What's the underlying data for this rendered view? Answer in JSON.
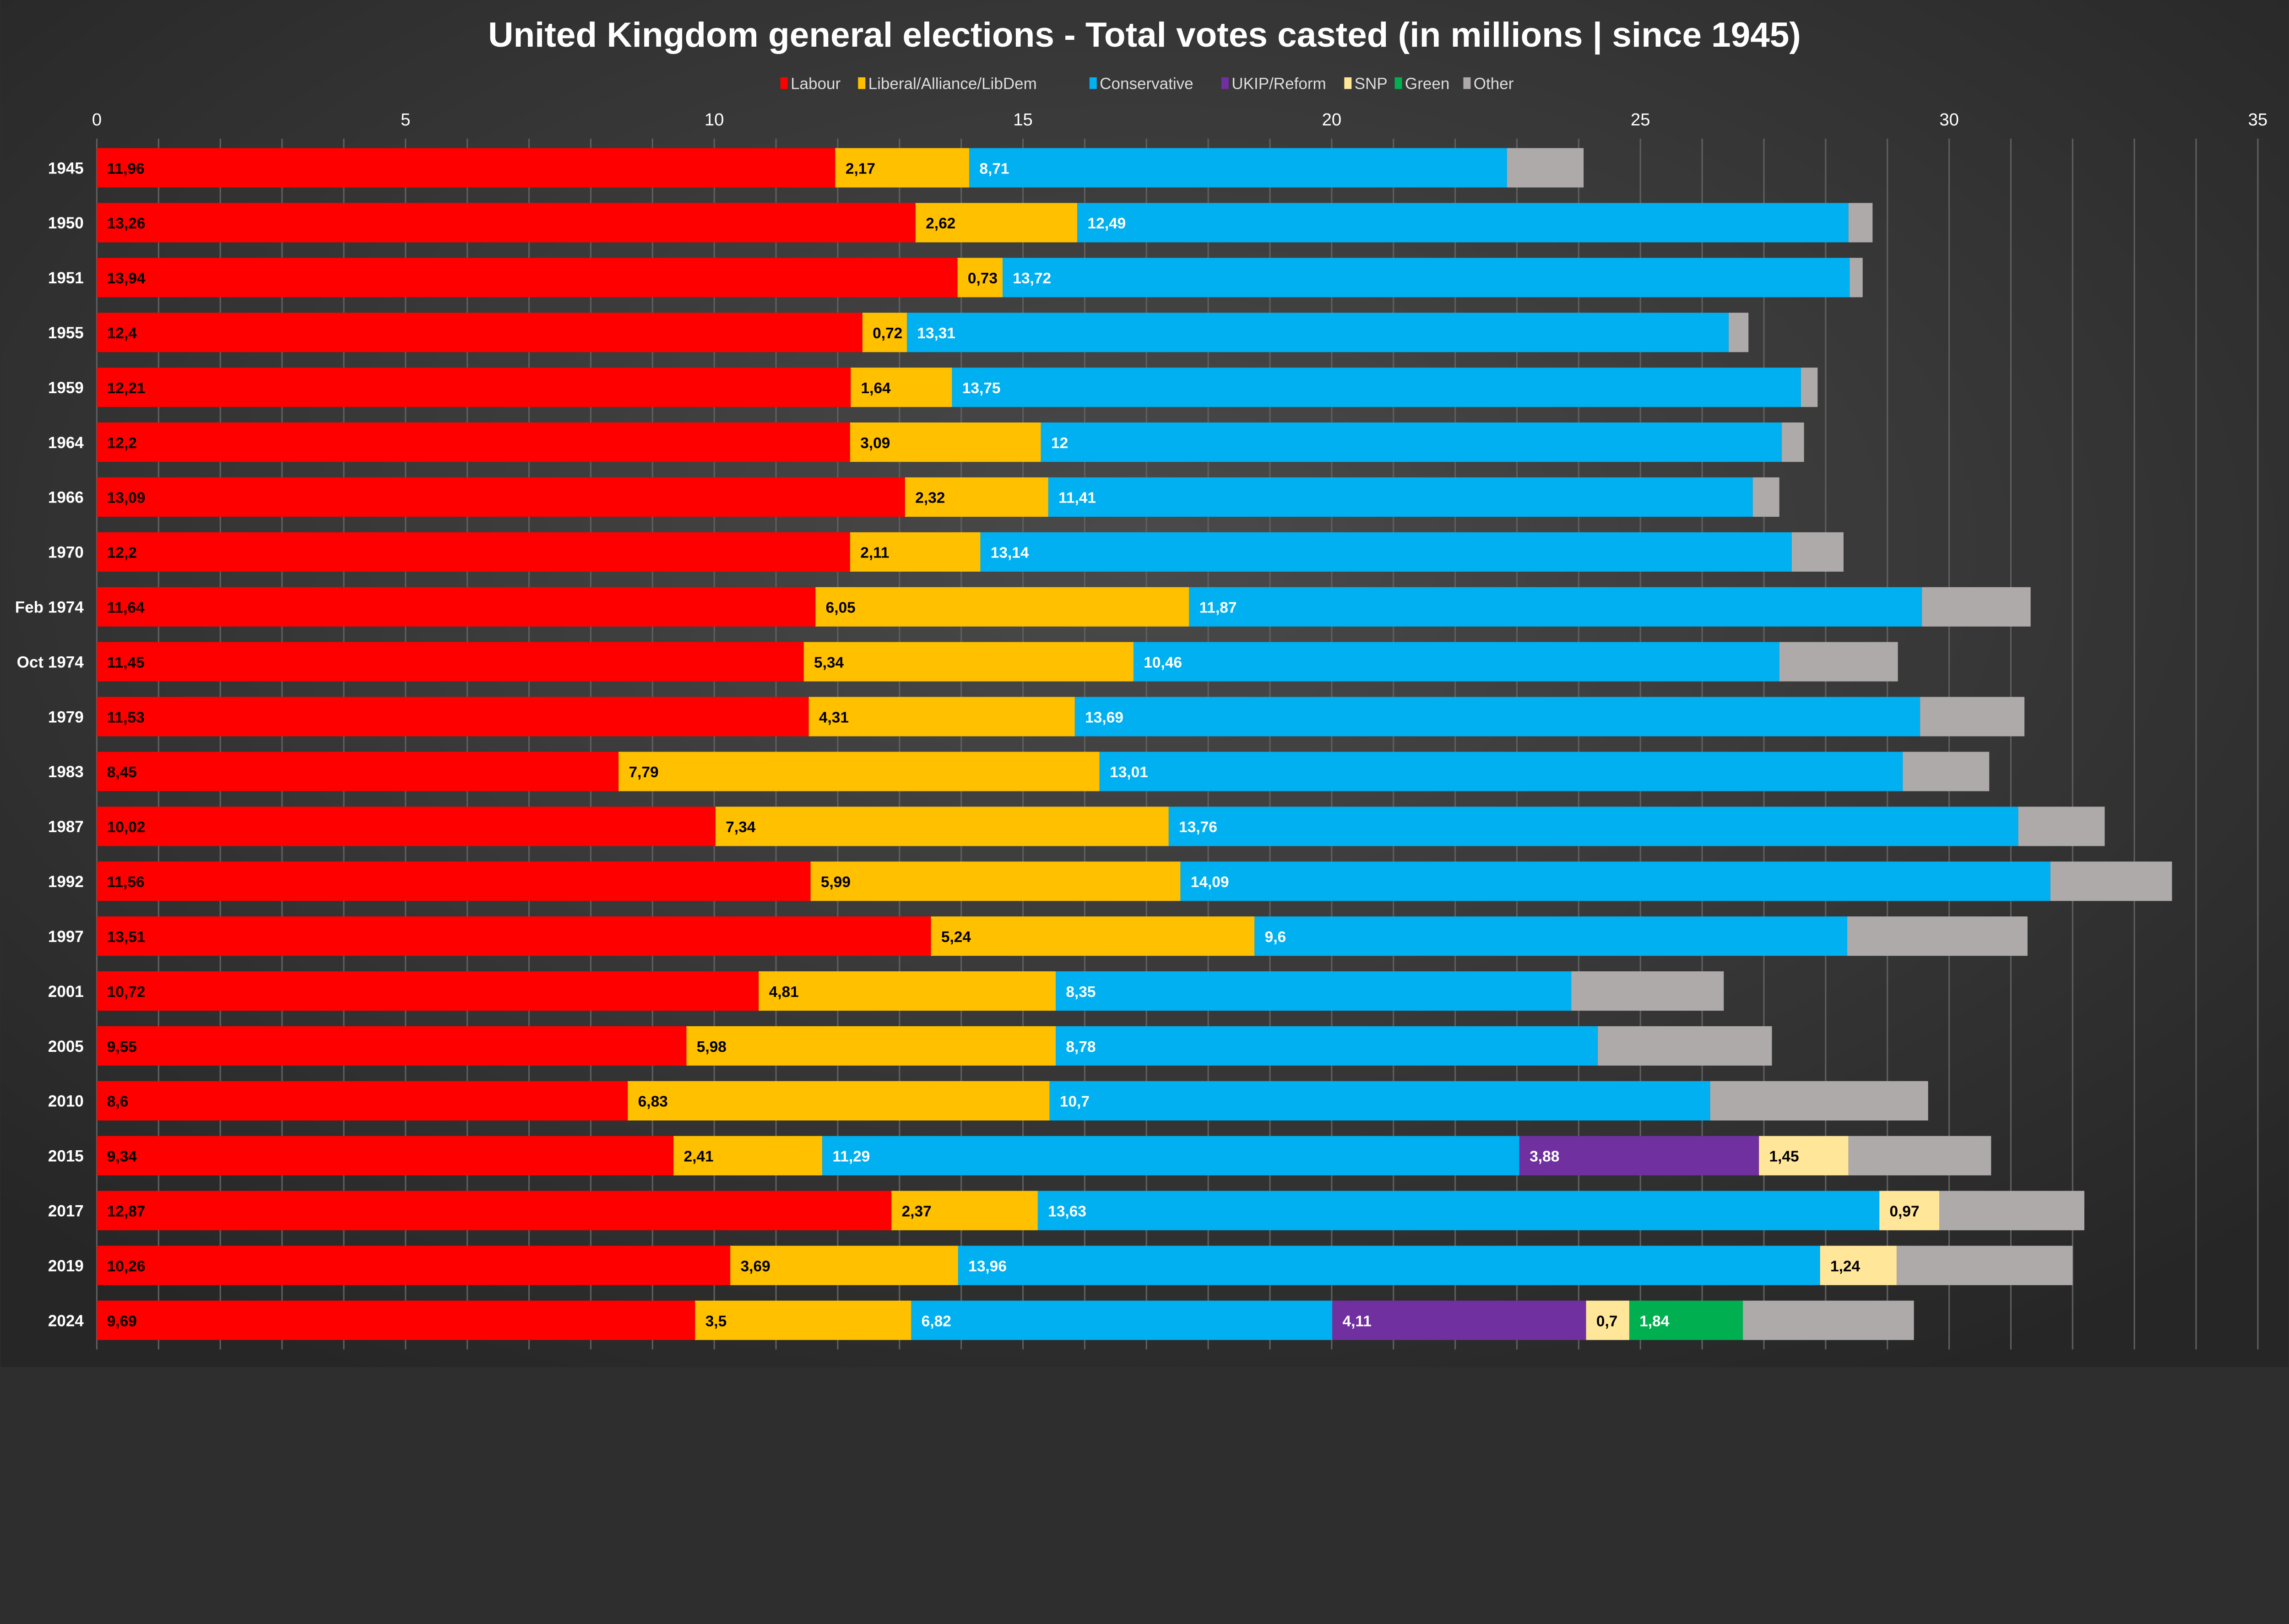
{
  "chart_data": {
    "type": "bar",
    "orientation": "horizontal",
    "stacked": true,
    "title": "United Kingdom general elections - Total votes casted (in millions | since 1945)",
    "xlabel": "",
    "ylabel": "",
    "xlim": [
      0,
      35
    ],
    "x_ticks": [
      "0",
      "5",
      "10",
      "15",
      "20",
      "25",
      "30",
      "35"
    ],
    "grid": "vertical, every 1",
    "legend_position": "top",
    "categories": [
      "1945",
      "1950",
      "1951",
      "1955",
      "1959",
      "1964",
      "1966",
      "1970",
      "Feb 1974",
      "Oct 1974",
      "1979",
      "1983",
      "1987",
      "1992",
      "1997",
      "2001",
      "2005",
      "2010",
      "2015",
      "2017",
      "2019",
      "2024"
    ],
    "series": [
      {
        "name": "Labour",
        "color": "#ff0000",
        "label_color": "#000000",
        "labeled": true,
        "values": [
          11.96,
          13.26,
          13.94,
          12.4,
          12.21,
          12.2,
          13.09,
          12.2,
          11.64,
          11.45,
          11.53,
          8.45,
          10.02,
          11.56,
          13.51,
          10.72,
          9.55,
          8.6,
          9.34,
          12.87,
          10.26,
          9.69
        ],
        "labels": [
          "11,96",
          "13,26",
          "13,94",
          "12,4",
          "12,21",
          "12,2",
          "13,09",
          "12,2",
          "11,64",
          "11,45",
          "11,53",
          "8,45",
          "10,02",
          "11,56",
          "13,51",
          "10,72",
          "9,55",
          "8,6",
          "9,34",
          "12,87",
          "10,26",
          "9,69"
        ]
      },
      {
        "name": "Liberal/Alliance/LibDem",
        "color": "#ffc000",
        "label_color": "#000000",
        "labeled": true,
        "values": [
          2.17,
          2.62,
          0.73,
          0.72,
          1.64,
          3.09,
          2.32,
          2.11,
          6.05,
          5.34,
          4.31,
          7.79,
          7.34,
          5.99,
          5.24,
          4.81,
          5.98,
          6.83,
          2.41,
          2.37,
          3.69,
          3.5
        ],
        "labels": [
          "2,17",
          "2,62",
          "0,73",
          "0,72",
          "1,64",
          "3,09",
          "2,32",
          "2,11",
          "6,05",
          "5,34",
          "4,31",
          "7,79",
          "7,34",
          "5,99",
          "5,24",
          "4,81",
          "5,98",
          "6,83",
          "2,41",
          "2,37",
          "3,69",
          "3,5"
        ]
      },
      {
        "name": "Conservative",
        "color": "#00b0f0",
        "label_color": "#ffffff",
        "labeled": true,
        "values": [
          8.71,
          12.49,
          13.72,
          13.31,
          13.75,
          12,
          11.41,
          13.14,
          11.87,
          10.46,
          13.69,
          13.01,
          13.76,
          14.09,
          9.6,
          8.35,
          8.78,
          10.7,
          11.29,
          13.63,
          13.96,
          6.82
        ],
        "labels": [
          "8,71",
          "12,49",
          "13,72",
          "13,31",
          "13,75",
          "12",
          "11,41",
          "13,14",
          "11,87",
          "10,46",
          "13,69",
          "13,01",
          "13,76",
          "14,09",
          "9,6",
          "8,35",
          "8,78",
          "10,7",
          "11,29",
          "13,63",
          "13,96",
          "6,82"
        ]
      },
      {
        "name": "UKIP/Reform",
        "color": "#7030a0",
        "label_color": "#ffffff",
        "labeled": true,
        "values": [
          0,
          0,
          0,
          0,
          0,
          0,
          0,
          0,
          0,
          0,
          0,
          0,
          0,
          0,
          0,
          0,
          0,
          0,
          3.88,
          0,
          0,
          4.11
        ],
        "labels": [
          "",
          "",
          "",
          "",
          "",
          "",
          "",
          "",
          "",
          "",
          "",
          "",
          "",
          "",
          "",
          "",
          "",
          "",
          "3,88",
          "",
          "",
          "4,11"
        ]
      },
      {
        "name": "SNP",
        "color": "#ffe699",
        "label_color": "#000000",
        "labeled": true,
        "values": [
          0,
          0,
          0,
          0,
          0,
          0,
          0,
          0,
          0,
          0,
          0,
          0,
          0,
          0,
          0,
          0,
          0,
          0,
          1.45,
          0.97,
          1.24,
          0.7
        ],
        "labels": [
          "",
          "",
          "",
          "",
          "",
          "",
          "",
          "",
          "",
          "",
          "",
          "",
          "",
          "",
          "",
          "",
          "",
          "",
          "1,45",
          "0,97",
          "1,24",
          "0,7"
        ]
      },
      {
        "name": "Green",
        "color": "#00b050",
        "label_color": "#ffffff",
        "labeled": true,
        "values": [
          0,
          0,
          0,
          0,
          0,
          0,
          0,
          0,
          0,
          0,
          0,
          0,
          0,
          0,
          0,
          0,
          0,
          0,
          0,
          0,
          0,
          1.84
        ],
        "labels": [
          "",
          "",
          "",
          "",
          "",
          "",
          "",
          "",
          "",
          "",
          "",
          "",
          "",
          "",
          "",
          "",
          "",
          "",
          "",
          "",
          "",
          "1,84"
        ]
      },
      {
        "name": "Other",
        "color": "#aeaaaa",
        "label_color": "#000000",
        "labeled": false,
        "values": [
          1.24,
          0.39,
          0.21,
          0.32,
          0.27,
          0.36,
          0.43,
          0.84,
          1.76,
          1.92,
          1.69,
          1.4,
          1.4,
          1.97,
          2.92,
          2.47,
          2.82,
          3.53,
          2.31,
          2.35,
          2.85,
          2.77
        ],
        "labels": []
      }
    ]
  }
}
